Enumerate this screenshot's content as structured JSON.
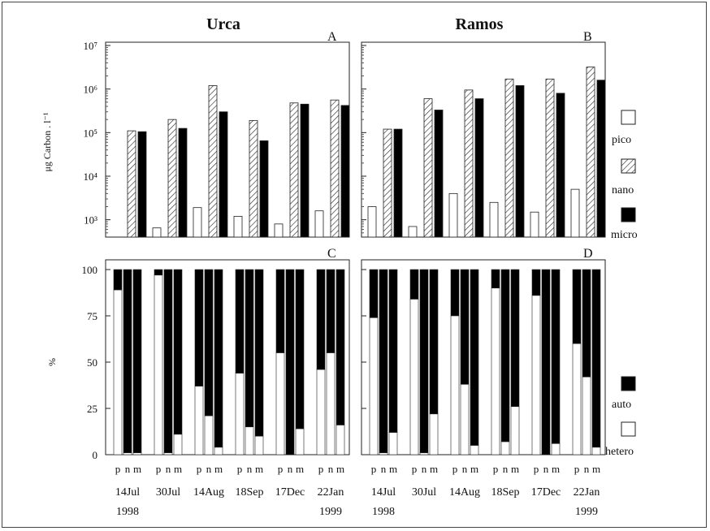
{
  "colors": {
    "pico_fill": "#ffffff",
    "nano_hatch": "#222222",
    "micro_fill": "#000000",
    "auto_fill": "#000000",
    "hetero_fill": "#ffffff",
    "stroke": "#222222"
  },
  "chart_data": [
    {
      "panel": "A",
      "title": "Urca",
      "type": "bar",
      "ylabel": "μg Carbon . l⁻¹",
      "yscale": "log",
      "ylim": [
        400,
        10000000
      ],
      "yticks": [
        "10³",
        "10⁴",
        "10⁵",
        "10⁶",
        "10⁷"
      ],
      "categories": [
        "14Jul 1998",
        "30Jul",
        "14Aug",
        "18Sep",
        "17Dec",
        "22Jan 1999"
      ],
      "series": [
        {
          "name": "pico",
          "values": [
            null,
            650,
            1900,
            1200,
            800,
            1600
          ]
        },
        {
          "name": "nano",
          "values": [
            110000,
            200000,
            1200000,
            190000,
            480000,
            560000
          ]
        },
        {
          "name": "micro",
          "values": [
            105000,
            125000,
            300000,
            65000,
            450000,
            420000
          ]
        }
      ]
    },
    {
      "panel": "B",
      "title": "Ramos",
      "type": "bar",
      "yscale": "log",
      "ylim": [
        400,
        10000000
      ],
      "categories": [
        "14Jul 1998",
        "30Jul",
        "14Aug",
        "18Sep",
        "17Dec",
        "22Jan 1999"
      ],
      "series": [
        {
          "name": "pico",
          "values": [
            2000,
            700,
            4000,
            2500,
            1500,
            5000
          ]
        },
        {
          "name": "nano",
          "values": [
            120000,
            600000,
            950000,
            1700000,
            1700000,
            3200000
          ]
        },
        {
          "name": "micro",
          "values": [
            120000,
            330000,
            600000,
            1200000,
            800000,
            1600000
          ]
        }
      ]
    },
    {
      "panel": "C",
      "type": "bar",
      "ylabel": "%",
      "ylim": [
        0,
        100
      ],
      "yticks": [
        "0",
        "25",
        "50",
        "75",
        "100"
      ],
      "categories": [
        "14Jul 1998",
        "30Jul",
        "14Aug",
        "18Sep",
        "17Dec",
        "22Jan 1999"
      ],
      "bar_labels": [
        "p",
        "n",
        "m"
      ],
      "stack_series": [
        "auto",
        "hetero"
      ],
      "hetero_percent": [
        [
          89,
          1,
          1
        ],
        [
          97,
          1,
          11
        ],
        [
          37,
          21,
          4
        ],
        [
          44,
          15,
          10
        ],
        [
          55,
          0,
          14
        ],
        [
          46,
          55,
          16
        ]
      ]
    },
    {
      "panel": "D",
      "type": "bar",
      "ylim": [
        0,
        100
      ],
      "categories": [
        "14Jul 1998",
        "30Jul",
        "14Aug",
        "18Sep",
        "17Dec",
        "22Jan 1999"
      ],
      "bar_labels": [
        "p",
        "n",
        "m"
      ],
      "stack_series": [
        "auto",
        "hetero"
      ],
      "hetero_percent": [
        [
          74,
          1,
          12
        ],
        [
          84,
          1,
          22
        ],
        [
          75,
          38,
          5
        ],
        [
          90,
          7,
          26
        ],
        [
          86,
          0,
          6
        ],
        [
          60,
          42,
          4
        ]
      ]
    }
  ],
  "legend_top": [
    "pico",
    "nano",
    "micro"
  ],
  "legend_bottom": [
    "auto",
    "hetero"
  ],
  "date_lines": [
    [
      "14Jul",
      "1998"
    ],
    [
      "30Jul",
      ""
    ],
    [
      "14Aug",
      ""
    ],
    [
      "18Sep",
      ""
    ],
    [
      "17Dec",
      ""
    ],
    [
      "22Jan",
      "1999"
    ]
  ]
}
